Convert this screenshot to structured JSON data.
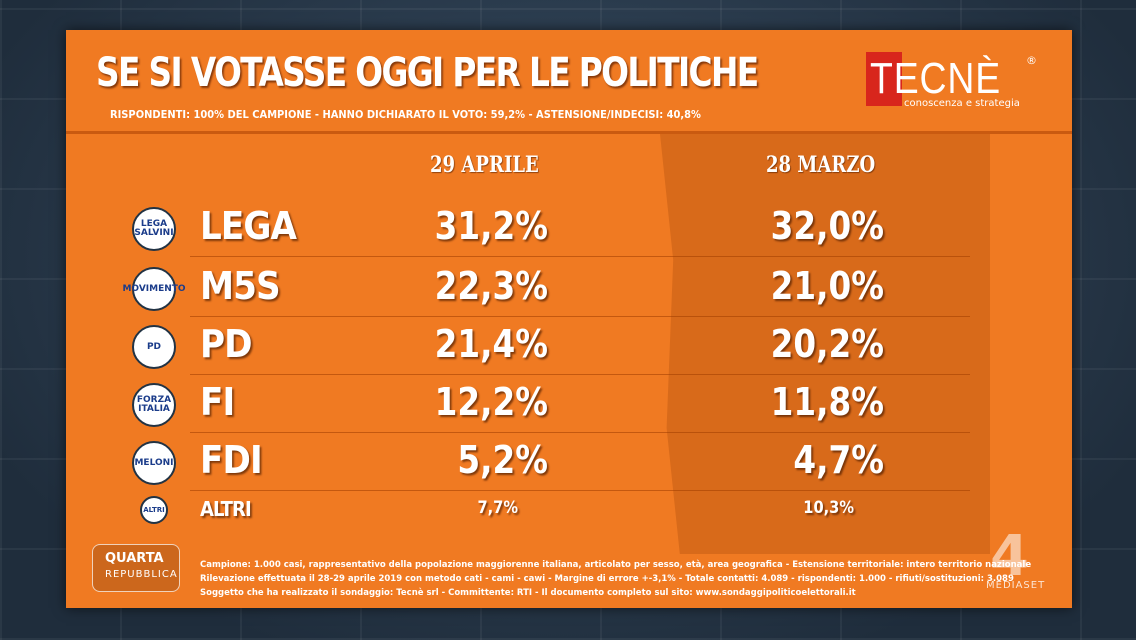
{
  "header": {
    "title": "SE SI VOTASSE OGGI PER LE POLITICHE",
    "subtitle": "RISPONDENTI: 100% DEL CAMPIONE - HANNO DICHIARATO IL VOTO: 59,2% - ASTENSIONE/INDECISI: 40,8%"
  },
  "brand": {
    "name": "TECNÈ",
    "registered": "®",
    "tagline": "conoscenza e strategia",
    "color": "#d8261c"
  },
  "colors": {
    "board": "#f07a22",
    "march_panel": "#d86a1a"
  },
  "chart_data": {
    "type": "table",
    "columns": [
      "29 APRILE",
      "28 MARZO"
    ],
    "rows": [
      {
        "party": "LEGA",
        "logo": "LEGA SALVINI",
        "values": [
          "31,2%",
          "32,0%"
        ]
      },
      {
        "party": "M5S",
        "logo": "MOVIMENTO",
        "values": [
          "22,3%",
          "21,0%"
        ]
      },
      {
        "party": "PD",
        "logo": "PD",
        "values": [
          "21,4%",
          "20,2%"
        ]
      },
      {
        "party": "FI",
        "logo": "FORZA ITALIA",
        "values": [
          "12,2%",
          "11,8%"
        ]
      },
      {
        "party": "FDI",
        "logo": "MELONI",
        "values": [
          "5,2%",
          "4,7%"
        ]
      },
      {
        "party": "ALTRI",
        "logo": "ALTRI",
        "values": [
          "7,7%",
          "10,3%"
        ]
      }
    ]
  },
  "footer": {
    "lines": [
      "Campione: 1.000 casi, rappresentativo della popolazione maggiorenne italiana, articolato per sesso, età, area geografica - Estensione territoriale: intero territorio nazionale",
      "Rilevazione effettuata il 28-29 aprile 2019 con metodo cati - cami - cawi - Margine di errore +-3,1% - Totale contatti: 4.089 - rispondenti: 1.000 - rifiuti/sostituzioni: 3.089",
      "Soggetto che ha realizzato il sondaggio: Tecnè srl - Committente: RTI - Il documento completo sul sito: www.sondaggipoliticoelettorali.it"
    ]
  },
  "overlay": {
    "show_name": "QUARTA",
    "show_sub": "REPUBBLICA",
    "channel_number": "4",
    "network": "MEDIASET"
  }
}
